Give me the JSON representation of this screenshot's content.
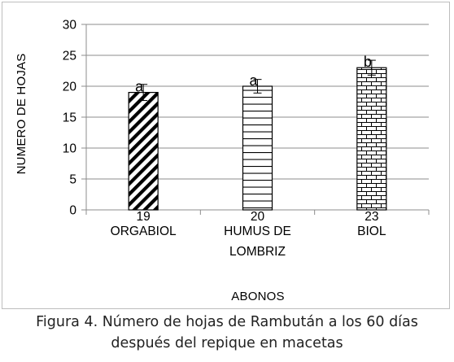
{
  "chart_data": {
    "type": "bar",
    "categories": [
      "ORGABIOL",
      "HUMUS DE LOMBRIZ",
      "BIOL"
    ],
    "category_lines": [
      [
        "ORGABIOL"
      ],
      [
        "HUMUS DE",
        "LOMBRIZ"
      ],
      [
        "BIOL"
      ]
    ],
    "values": [
      19,
      20,
      23
    ],
    "error": [
      1.3,
      1.1,
      1.2
    ],
    "data_labels": [
      "19",
      "20",
      "23"
    ],
    "significance_letters": [
      "a",
      "a",
      "b"
    ],
    "bar_patterns": [
      "diagonal-stripes",
      "horizontal-lines",
      "brick"
    ],
    "ylim": [
      0,
      30
    ],
    "yticks": [
      0,
      5,
      10,
      15,
      20,
      25,
      30
    ],
    "xlabel": "ABONOS",
    "ylabel": "NUMERO DE HOJAS",
    "grid": true,
    "legend": "none"
  },
  "caption": {
    "line1": "Figura 4. Número de hojas de Rambután a los 60 días",
    "line2": "después del repique en macetas"
  }
}
